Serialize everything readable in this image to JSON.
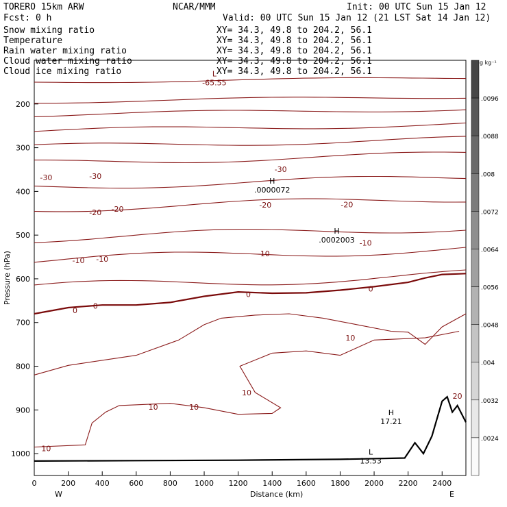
{
  "header": {
    "model": "TORERO  15km ARW",
    "center": "NCAR/MMM",
    "init": "Init: 00 UTC Sun 15 Jan 12",
    "fcst": "Fcst:    0 h",
    "valid": "Valid: 00 UTC Sun 15 Jan 12 (21 LST Sat 14 Jan 12)"
  },
  "fields": [
    {
      "name": "Snow mixing ratio",
      "xy": "XY=  34.3, 49.8 to 204.2, 56.1",
      "color": "#000000"
    },
    {
      "name": "Temperature",
      "xy": "XY=  34.3, 49.8 to 204.2, 56.1",
      "color": "#c41010"
    },
    {
      "name": "Rain water mixing ratio",
      "xy": "XY=  34.3, 49.8 to 204.2, 56.1",
      "color": "#e01010"
    },
    {
      "name": "Cloud water mixing ratio",
      "xy": "XY=  34.3, 49.8 to 204.2, 56.1",
      "color": "#1010a0"
    },
    {
      "name": "Cloud ice mixing ratio",
      "xy": "XY=  34.3, 49.8 to 204.2, 56.1",
      "color": "#000000"
    }
  ],
  "colorbar": {
    "unit": "g kg⁻¹",
    "labels": [
      ".0096",
      ".0088",
      ".008",
      ".0072",
      ".0064",
      ".0056",
      ".0048",
      ".004",
      ".0032",
      ".0024"
    ]
  },
  "chart_data": {
    "type": "line",
    "xlabel": "Distance (km)",
    "ylabel": "Pressure (hPa)",
    "xlim": [
      0,
      2540
    ],
    "ylim": [
      1050,
      100
    ],
    "xticks": [
      0,
      200,
      400,
      600,
      800,
      1000,
      1200,
      1400,
      1600,
      1800,
      2000,
      2200,
      2400
    ],
    "yticks": [
      200,
      300,
      400,
      500,
      600,
      700,
      800,
      900,
      1000
    ],
    "left_end": "W",
    "right_end": "E",
    "contour_labels": [
      {
        "text": "-30",
        "x": 70,
        "y": 368
      },
      {
        "text": "-30",
        "x": 360,
        "y": 365
      },
      {
        "text": "-30",
        "x": 1450,
        "y": 349
      },
      {
        "text": "-20",
        "x": 360,
        "y": 448
      },
      {
        "text": "-20",
        "x": 490,
        "y": 440
      },
      {
        "text": "-20",
        "x": 1360,
        "y": 431
      },
      {
        "text": "-20",
        "x": 1840,
        "y": 430
      },
      {
        "text": "-10",
        "x": 260,
        "y": 558
      },
      {
        "text": "-10",
        "x": 400,
        "y": 555
      },
      {
        "text": "-10",
        "x": 1350,
        "y": 542
      },
      {
        "text": "-10",
        "x": 1950,
        "y": 518
      },
      {
        "text": "0",
        "x": 240,
        "y": 672
      },
      {
        "text": "0",
        "x": 360,
        "y": 662
      },
      {
        "text": "0",
        "x": 1260,
        "y": 635
      },
      {
        "text": "0",
        "x": 1980,
        "y": 623
      },
      {
        "text": "10",
        "x": 1860,
        "y": 735
      },
      {
        "text": "10",
        "x": 1250,
        "y": 860
      },
      {
        "text": "10",
        "x": 700,
        "y": 893
      },
      {
        "text": "10",
        "x": 940,
        "y": 893
      },
      {
        "text": "10",
        "x": 70,
        "y": 988
      },
      {
        "text": "20",
        "x": 2490,
        "y": 868
      }
    ],
    "extrema": [
      {
        "kind": "L",
        "value": "-65.55",
        "x": 1060,
        "y": 140
      },
      {
        "kind": "H",
        "value": ".0000072",
        "x": 1400,
        "y": 385
      },
      {
        "kind": "H",
        "value": ".0002003",
        "x": 1780,
        "y": 500
      },
      {
        "kind": "H",
        "value": "17.21",
        "x": 2100,
        "y": 915
      },
      {
        "kind": "L",
        "value": "13.53",
        "x": 1980,
        "y": 1005
      }
    ],
    "isotherms_hpa_at_left": [
      150,
      195,
      225,
      262,
      298,
      335,
      390,
      440,
      508,
      558,
      620
    ],
    "terrain": [
      {
        "x": 0,
        "p": 1017
      },
      {
        "x": 600,
        "p": 1016
      },
      {
        "x": 1200,
        "p": 1015
      },
      {
        "x": 1800,
        "p": 1013
      },
      {
        "x": 2180,
        "p": 1010
      },
      {
        "x": 2240,
        "p": 975
      },
      {
        "x": 2290,
        "p": 1000
      },
      {
        "x": 2340,
        "p": 960
      },
      {
        "x": 2400,
        "p": 880
      },
      {
        "x": 2430,
        "p": 870
      },
      {
        "x": 2460,
        "p": 905
      },
      {
        "x": 2490,
        "p": 890
      },
      {
        "x": 2540,
        "p": 928
      }
    ]
  }
}
